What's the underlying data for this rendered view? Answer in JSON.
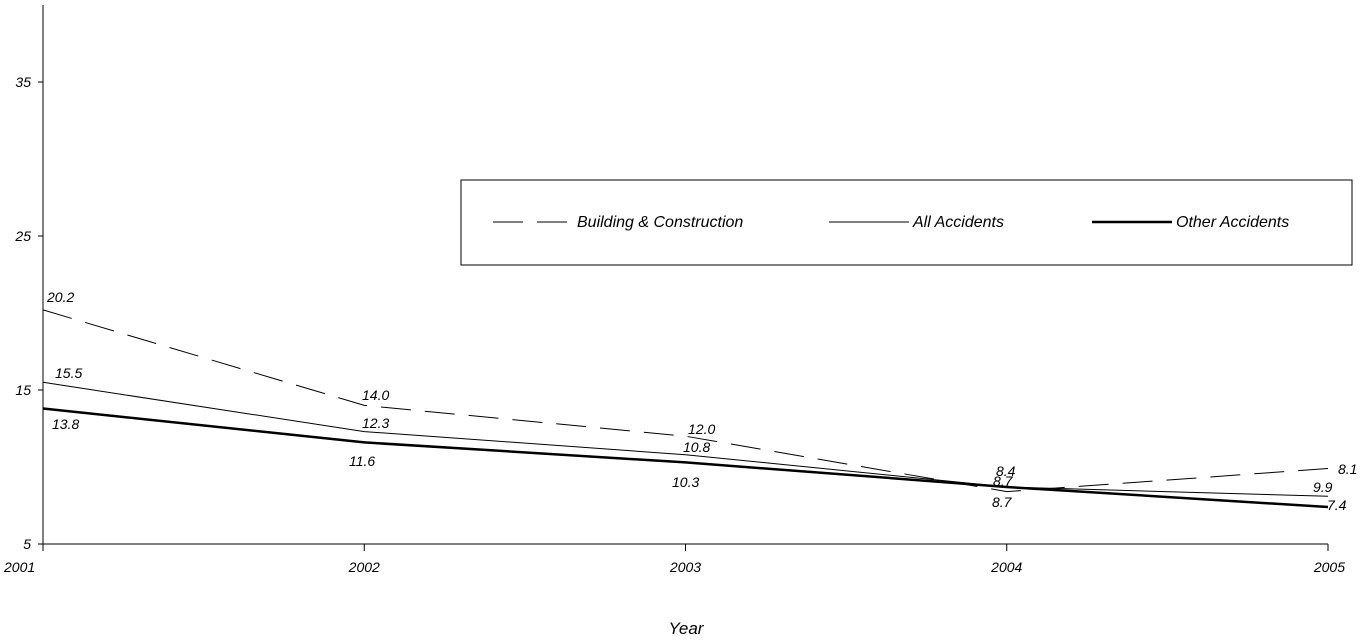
{
  "chart_data": {
    "type": "line",
    "title": "",
    "xlabel": "Year",
    "ylabel": "",
    "categories": [
      "2001",
      "2002",
      "2003",
      "2004",
      "2005"
    ],
    "ylim": [
      5,
      40
    ],
    "yticks": [
      5,
      15,
      25,
      35
    ],
    "grid": false,
    "legend_position": "top-right",
    "series": [
      {
        "name": "Building & Construction",
        "values": [
          20.2,
          14.0,
          12.0,
          8.4,
          9.9
        ],
        "labels": [
          "20.2",
          "14.0",
          "12.0",
          "8.4",
          "9.9"
        ],
        "style": "dashed",
        "color": "#000000"
      },
      {
        "name": "All Accidents",
        "values": [
          15.5,
          12.3,
          10.8,
          8.7,
          8.1
        ],
        "labels": [
          "15.5",
          "12.3",
          "10.8",
          "8.7",
          "8.1"
        ],
        "style": "thin",
        "color": "#000000"
      },
      {
        "name": "Other Accidents",
        "values": [
          13.8,
          11.6,
          10.3,
          8.7,
          7.4
        ],
        "labels": [
          "13.8",
          "11.6",
          "10.3",
          "8.7",
          "7.4"
        ],
        "style": "thick",
        "color": "#000000"
      }
    ]
  }
}
